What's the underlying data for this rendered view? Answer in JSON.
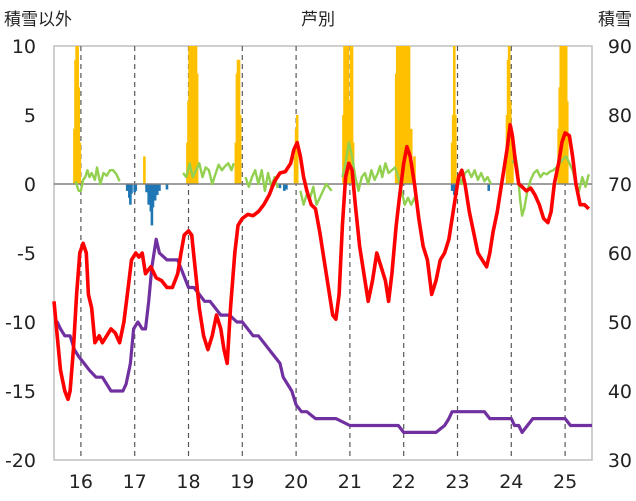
{
  "chart_data": {
    "type": "bar+line",
    "title": "芦別",
    "left_axis_label": "積雪以外",
    "right_axis_label": "積雪",
    "left_ylim": [
      -20,
      10
    ],
    "left_ticks": [
      10,
      5,
      0,
      -5,
      -10,
      -15,
      -20
    ],
    "right_ylim": [
      30,
      90
    ],
    "right_ticks": [
      90,
      80,
      70,
      60,
      50,
      40,
      30
    ],
    "xlim": [
      15.5,
      25.5
    ],
    "x_ticks": [
      16,
      17,
      18,
      19,
      20,
      21,
      22,
      23,
      24,
      25
    ],
    "x_tick_labels": [
      "16",
      "17",
      "18",
      "19",
      "20",
      "21",
      "22",
      "23",
      "24",
      "25"
    ],
    "grid": {
      "vertical_dashed": true
    },
    "colors": {
      "precip": "#ffc000",
      "sunshine": "#1f77b4",
      "temperature": "#ff0000",
      "wind": "#92d050",
      "snow_depth": "#7030a0"
    },
    "precipitation": [
      [
        15.88,
        4
      ],
      [
        15.9,
        9
      ],
      [
        15.92,
        10
      ],
      [
        15.94,
        10
      ],
      [
        15.96,
        7
      ],
      [
        15.98,
        3
      ],
      [
        17.18,
        2
      ],
      [
        17.98,
        3
      ],
      [
        18.0,
        6
      ],
      [
        18.02,
        10
      ],
      [
        18.04,
        10
      ],
      [
        18.06,
        10
      ],
      [
        18.08,
        10
      ],
      [
        18.1,
        10
      ],
      [
        18.12,
        10
      ],
      [
        18.14,
        10
      ],
      [
        18.16,
        8
      ],
      [
        18.88,
        3
      ],
      [
        18.9,
        8
      ],
      [
        18.92,
        9
      ],
      [
        18.94,
        9
      ],
      [
        18.96,
        5
      ],
      [
        19.98,
        2
      ],
      [
        20.0,
        4
      ],
      [
        20.02,
        5
      ],
      [
        20.88,
        5
      ],
      [
        20.9,
        10
      ],
      [
        20.92,
        10
      ],
      [
        20.94,
        10
      ],
      [
        20.96,
        10
      ],
      [
        20.98,
        6
      ],
      [
        21.0,
        4
      ],
      [
        21.02,
        10
      ],
      [
        21.04,
        10
      ],
      [
        21.06,
        3
      ],
      [
        21.86,
        8
      ],
      [
        21.88,
        10
      ],
      [
        21.9,
        10
      ],
      [
        21.92,
        10
      ],
      [
        21.94,
        10
      ],
      [
        21.96,
        10
      ],
      [
        21.98,
        10
      ],
      [
        22.0,
        10
      ],
      [
        22.02,
        10
      ],
      [
        22.04,
        10
      ],
      [
        22.06,
        10
      ],
      [
        22.08,
        10
      ],
      [
        22.1,
        10
      ],
      [
        22.14,
        4
      ],
      [
        22.2,
        2
      ],
      [
        22.9,
        3
      ],
      [
        22.92,
        5
      ],
      [
        22.94,
        10
      ],
      [
        22.96,
        5
      ],
      [
        23.92,
        5
      ],
      [
        23.94,
        9
      ],
      [
        23.96,
        10
      ],
      [
        23.98,
        6
      ],
      [
        24.02,
        3
      ],
      [
        24.88,
        4
      ],
      [
        24.9,
        7
      ],
      [
        24.92,
        10
      ],
      [
        24.94,
        10
      ],
      [
        24.96,
        10
      ],
      [
        24.98,
        10
      ],
      [
        25.0,
        10
      ],
      [
        25.02,
        10
      ],
      [
        25.04,
        6
      ]
    ],
    "sunshine": [
      [
        16.86,
        -0.5
      ],
      [
        16.9,
        -1.0
      ],
      [
        16.92,
        -1.5
      ],
      [
        16.94,
        -0.7
      ],
      [
        17.0,
        -0.6
      ],
      [
        17.02,
        -0.5
      ],
      [
        17.22,
        -0.6
      ],
      [
        17.26,
        -1.5
      ],
      [
        17.3,
        -2.0
      ],
      [
        17.32,
        -3.0
      ],
      [
        17.34,
        -1.7
      ],
      [
        17.38,
        -1.2
      ],
      [
        17.42,
        -0.8
      ],
      [
        17.46,
        -0.5
      ],
      [
        17.6,
        -0.4
      ],
      [
        19.7,
        -0.3
      ],
      [
        19.78,
        -0.5
      ],
      [
        19.82,
        -0.4
      ],
      [
        22.9,
        -0.5
      ],
      [
        22.94,
        -0.8
      ],
      [
        23.58,
        -0.5
      ]
    ],
    "temperature": [
      [
        15.5,
        -8.5
      ],
      [
        15.56,
        -11.0
      ],
      [
        15.62,
        -13.5
      ],
      [
        15.7,
        -15.0
      ],
      [
        15.76,
        -15.6
      ],
      [
        15.8,
        -15.0
      ],
      [
        15.86,
        -12.0
      ],
      [
        15.92,
        -8.0
      ],
      [
        15.98,
        -5.0
      ],
      [
        16.04,
        -4.3
      ],
      [
        16.1,
        -5.0
      ],
      [
        16.14,
        -8.0
      ],
      [
        16.2,
        -9.0
      ],
      [
        16.26,
        -11.5
      ],
      [
        16.34,
        -11.0
      ],
      [
        16.4,
        -11.5
      ],
      [
        16.48,
        -11.0
      ],
      [
        16.56,
        -10.5
      ],
      [
        16.64,
        -10.8
      ],
      [
        16.72,
        -11.5
      ],
      [
        16.8,
        -10.0
      ],
      [
        16.88,
        -7.5
      ],
      [
        16.94,
        -5.5
      ],
      [
        17.02,
        -5.0
      ],
      [
        17.08,
        -5.3
      ],
      [
        17.14,
        -5.0
      ],
      [
        17.2,
        -6.5
      ],
      [
        17.3,
        -6.0
      ],
      [
        17.4,
        -6.8
      ],
      [
        17.5,
        -7.0
      ],
      [
        17.6,
        -7.5
      ],
      [
        17.7,
        -7.5
      ],
      [
        17.8,
        -6.5
      ],
      [
        17.86,
        -5.0
      ],
      [
        17.92,
        -3.7
      ],
      [
        18.0,
        -3.4
      ],
      [
        18.06,
        -3.7
      ],
      [
        18.12,
        -6.0
      ],
      [
        18.2,
        -9.0
      ],
      [
        18.28,
        -11.0
      ],
      [
        18.36,
        -12.0
      ],
      [
        18.44,
        -11.0
      ],
      [
        18.52,
        -9.5
      ],
      [
        18.6,
        -10.5
      ],
      [
        18.66,
        -12.0
      ],
      [
        18.72,
        -13.0
      ],
      [
        18.78,
        -9.0
      ],
      [
        18.86,
        -5.0
      ],
      [
        18.92,
        -3.0
      ],
      [
        19.0,
        -2.5
      ],
      [
        19.1,
        -2.2
      ],
      [
        19.2,
        -2.3
      ],
      [
        19.3,
        -2.0
      ],
      [
        19.4,
        -1.5
      ],
      [
        19.5,
        -0.8
      ],
      [
        19.6,
        0.2
      ],
      [
        19.7,
        0.8
      ],
      [
        19.8,
        0.9
      ],
      [
        19.9,
        1.5
      ],
      [
        19.96,
        2.5
      ],
      [
        20.02,
        3.0
      ],
      [
        20.08,
        2.0
      ],
      [
        20.14,
        0.5
      ],
      [
        20.2,
        -0.5
      ],
      [
        20.28,
        -1.5
      ],
      [
        20.36,
        -1.8
      ],
      [
        20.44,
        -3.5
      ],
      [
        20.52,
        -5.5
      ],
      [
        20.6,
        -7.5
      ],
      [
        20.68,
        -9.5
      ],
      [
        20.74,
        -9.8
      ],
      [
        20.8,
        -8.0
      ],
      [
        20.86,
        -3.0
      ],
      [
        20.92,
        0.5
      ],
      [
        20.98,
        1.5
      ],
      [
        21.04,
        1.0
      ],
      [
        21.1,
        -1.5
      ],
      [
        21.18,
        -4.5
      ],
      [
        21.26,
        -6.5
      ],
      [
        21.34,
        -8.5
      ],
      [
        21.42,
        -7.0
      ],
      [
        21.5,
        -5.0
      ],
      [
        21.58,
        -6.0
      ],
      [
        21.66,
        -7.0
      ],
      [
        21.72,
        -8.5
      ],
      [
        21.78,
        -6.5
      ],
      [
        21.86,
        -3.0
      ],
      [
        21.92,
        -1.0
      ],
      [
        22.0,
        1.5
      ],
      [
        22.06,
        2.7
      ],
      [
        22.12,
        2.0
      ],
      [
        22.2,
        0.0
      ],
      [
        22.28,
        -2.5
      ],
      [
        22.36,
        -4.5
      ],
      [
        22.44,
        -5.5
      ],
      [
        22.52,
        -8.0
      ],
      [
        22.6,
        -7.0
      ],
      [
        22.68,
        -5.5
      ],
      [
        22.76,
        -5.0
      ],
      [
        22.84,
        -4.0
      ],
      [
        22.9,
        -2.5
      ],
      [
        22.96,
        -1.0
      ],
      [
        23.02,
        0.5
      ],
      [
        23.08,
        1.0
      ],
      [
        23.14,
        0.0
      ],
      [
        23.22,
        -2.0
      ],
      [
        23.3,
        -3.5
      ],
      [
        23.38,
        -5.0
      ],
      [
        23.46,
        -5.5
      ],
      [
        23.54,
        -6.0
      ],
      [
        23.6,
        -5.0
      ],
      [
        23.66,
        -3.5
      ],
      [
        23.74,
        -2.0
      ],
      [
        23.8,
        -0.5
      ],
      [
        23.86,
        1.0
      ],
      [
        23.92,
        2.5
      ],
      [
        23.98,
        4.3
      ],
      [
        24.02,
        3.5
      ],
      [
        24.08,
        1.5
      ],
      [
        24.14,
        0.0
      ],
      [
        24.2,
        -0.2
      ],
      [
        24.28,
        -0.5
      ],
      [
        24.36,
        -0.3
      ],
      [
        24.44,
        -0.8
      ],
      [
        24.52,
        -1.5
      ],
      [
        24.6,
        -2.5
      ],
      [
        24.68,
        -2.8
      ],
      [
        24.74,
        -2.0
      ],
      [
        24.8,
        0.0
      ],
      [
        24.88,
        1.5
      ],
      [
        24.94,
        3.0
      ],
      [
        25.0,
        3.7
      ],
      [
        25.08,
        3.5
      ],
      [
        25.14,
        2.0
      ],
      [
        25.2,
        0.0
      ],
      [
        25.28,
        -1.5
      ],
      [
        25.36,
        -1.5
      ],
      [
        25.44,
        -1.8
      ]
    ],
    "wind": [
      [
        15.9,
        0.2
      ],
      [
        15.96,
        -0.5
      ],
      [
        16.0,
        -0.5
      ],
      [
        16.04,
        0.3
      ],
      [
        16.08,
        0.5
      ],
      [
        16.12,
        1.0
      ],
      [
        16.16,
        0.5
      ],
      [
        16.2,
        0.8
      ],
      [
        16.26,
        0.3
      ],
      [
        16.3,
        1.2
      ],
      [
        16.36,
        0.0
      ],
      [
        16.42,
        0.8
      ],
      [
        16.48,
        0.6
      ],
      [
        16.54,
        1.0
      ],
      [
        16.6,
        1.0
      ],
      [
        16.66,
        0.7
      ],
      [
        16.72,
        0.2
      ],
      [
        17.9,
        0.8
      ],
      [
        17.96,
        0.5
      ],
      [
        18.02,
        1.5
      ],
      [
        18.08,
        0.5
      ],
      [
        18.14,
        1.0
      ],
      [
        18.2,
        1.5
      ],
      [
        18.26,
        0.5
      ],
      [
        18.32,
        1.2
      ],
      [
        18.38,
        1.0
      ],
      [
        18.44,
        0.0
      ],
      [
        18.5,
        0.7
      ],
      [
        18.56,
        1.4
      ],
      [
        18.62,
        1.0
      ],
      [
        18.68,
        1.3
      ],
      [
        18.74,
        1.5
      ],
      [
        18.8,
        1.0
      ],
      [
        18.84,
        1.5
      ],
      [
        19.06,
        0.5
      ],
      [
        19.12,
        -0.2
      ],
      [
        19.18,
        0.5
      ],
      [
        19.24,
        1.0
      ],
      [
        19.3,
        0.0
      ],
      [
        19.36,
        1.0
      ],
      [
        19.42,
        -0.5
      ],
      [
        19.48,
        0.8
      ],
      [
        19.54,
        -0.2
      ],
      [
        19.6,
        0.5
      ],
      [
        19.66,
        -0.3
      ],
      [
        20.08,
        -0.5
      ],
      [
        20.14,
        -1.5
      ],
      [
        20.2,
        -0.7
      ],
      [
        20.26,
        -1.0
      ],
      [
        20.32,
        -0.2
      ],
      [
        20.38,
        -1.5
      ],
      [
        20.44,
        -1.0
      ],
      [
        20.5,
        -0.5
      ],
      [
        20.56,
        0.0
      ],
      [
        20.62,
        -0.3
      ],
      [
        20.66,
        -0.5
      ],
      [
        20.86,
        0.5
      ],
      [
        20.92,
        1.5
      ],
      [
        20.98,
        3.0
      ],
      [
        21.04,
        2.0
      ],
      [
        21.1,
        0.5
      ],
      [
        21.16,
        -0.5
      ],
      [
        21.22,
        0.5
      ],
      [
        21.28,
        0.8
      ],
      [
        21.34,
        0.0
      ],
      [
        21.4,
        1.0
      ],
      [
        21.46,
        0.3
      ],
      [
        21.52,
        0.8
      ],
      [
        21.56,
        1.3
      ],
      [
        21.6,
        0.5
      ],
      [
        21.66,
        1.5
      ],
      [
        21.72,
        0.8
      ],
      [
        21.78,
        1.0
      ],
      [
        21.84,
        1.2
      ],
      [
        21.9,
        0.5
      ],
      [
        21.96,
        -0.5
      ],
      [
        22.02,
        -1.5
      ],
      [
        22.08,
        -1.0
      ],
      [
        22.14,
        -1.5
      ],
      [
        22.2,
        -1.0
      ],
      [
        22.26,
        -1.7
      ],
      [
        23.04,
        0.5
      ],
      [
        23.08,
        0.0
      ],
      [
        23.14,
        0.8
      ],
      [
        23.2,
        1.0
      ],
      [
        23.26,
        0.5
      ],
      [
        23.32,
        1.0
      ],
      [
        23.38,
        0.3
      ],
      [
        23.44,
        0.8
      ],
      [
        23.5,
        0.2
      ],
      [
        23.56,
        0.5
      ],
      [
        23.62,
        0.0
      ],
      [
        24.02,
        1.5
      ],
      [
        24.08,
        2.0
      ],
      [
        24.12,
        1.0
      ],
      [
        24.16,
        -1.0
      ],
      [
        24.2,
        -2.3
      ],
      [
        24.24,
        -1.8
      ],
      [
        24.3,
        -0.5
      ],
      [
        24.36,
        0.3
      ],
      [
        24.42,
        0.8
      ],
      [
        24.48,
        1.0
      ],
      [
        24.54,
        0.5
      ],
      [
        24.6,
        0.8
      ],
      [
        24.66,
        0.7
      ],
      [
        24.72,
        0.9
      ],
      [
        24.78,
        1.0
      ],
      [
        24.84,
        1.2
      ],
      [
        24.9,
        1.5
      ],
      [
        24.96,
        1.8
      ],
      [
        25.02,
        2.0
      ],
      [
        25.08,
        1.5
      ],
      [
        25.14,
        1.0
      ],
      [
        25.2,
        0.0
      ],
      [
        25.26,
        -0.5
      ],
      [
        25.32,
        0.5
      ],
      [
        25.38,
        -0.2
      ],
      [
        25.44,
        0.7
      ]
    ],
    "snow_depth": [
      [
        15.5,
        50
      ],
      [
        15.56,
        50
      ],
      [
        15.62,
        49
      ],
      [
        15.7,
        48
      ],
      [
        15.8,
        48
      ],
      [
        15.88,
        46
      ],
      [
        15.96,
        45
      ],
      [
        16.06,
        44
      ],
      [
        16.16,
        43
      ],
      [
        16.28,
        42
      ],
      [
        16.4,
        42
      ],
      [
        16.56,
        40
      ],
      [
        16.78,
        40
      ],
      [
        16.84,
        41
      ],
      [
        16.92,
        44
      ],
      [
        16.98,
        49
      ],
      [
        17.06,
        50
      ],
      [
        17.14,
        49
      ],
      [
        17.2,
        49
      ],
      [
        17.26,
        53
      ],
      [
        17.32,
        58
      ],
      [
        17.4,
        62
      ],
      [
        17.46,
        60
      ],
      [
        17.6,
        59
      ],
      [
        17.8,
        59
      ],
      [
        17.9,
        57
      ],
      [
        18.0,
        55
      ],
      [
        18.1,
        55
      ],
      [
        18.2,
        54
      ],
      [
        18.3,
        53
      ],
      [
        18.4,
        53
      ],
      [
        18.5,
        52
      ],
      [
        18.6,
        51
      ],
      [
        18.76,
        51
      ],
      [
        18.9,
        50
      ],
      [
        19.0,
        50
      ],
      [
        19.1,
        49
      ],
      [
        19.2,
        48
      ],
      [
        19.3,
        48
      ],
      [
        19.4,
        47
      ],
      [
        19.5,
        46
      ],
      [
        19.6,
        45
      ],
      [
        19.7,
        44
      ],
      [
        19.76,
        42
      ],
      [
        19.84,
        41
      ],
      [
        19.92,
        40
      ],
      [
        20.0,
        38
      ],
      [
        20.1,
        37
      ],
      [
        20.2,
        37
      ],
      [
        20.36,
        36
      ],
      [
        20.5,
        36
      ],
      [
        20.74,
        36
      ],
      [
        21.0,
        35
      ],
      [
        21.4,
        35
      ],
      [
        21.6,
        35
      ],
      [
        21.9,
        35
      ],
      [
        22.0,
        34
      ],
      [
        22.2,
        34
      ],
      [
        22.4,
        34
      ],
      [
        22.6,
        34
      ],
      [
        22.76,
        35
      ],
      [
        22.84,
        36
      ],
      [
        22.9,
        37
      ],
      [
        23.0,
        37
      ],
      [
        23.2,
        37
      ],
      [
        23.5,
        37
      ],
      [
        23.6,
        36
      ],
      [
        24.0,
        36
      ],
      [
        24.06,
        35
      ],
      [
        24.14,
        35
      ],
      [
        24.2,
        34
      ],
      [
        24.4,
        36
      ],
      [
        25.0,
        36
      ],
      [
        25.1,
        35
      ],
      [
        25.5,
        35
      ]
    ]
  }
}
